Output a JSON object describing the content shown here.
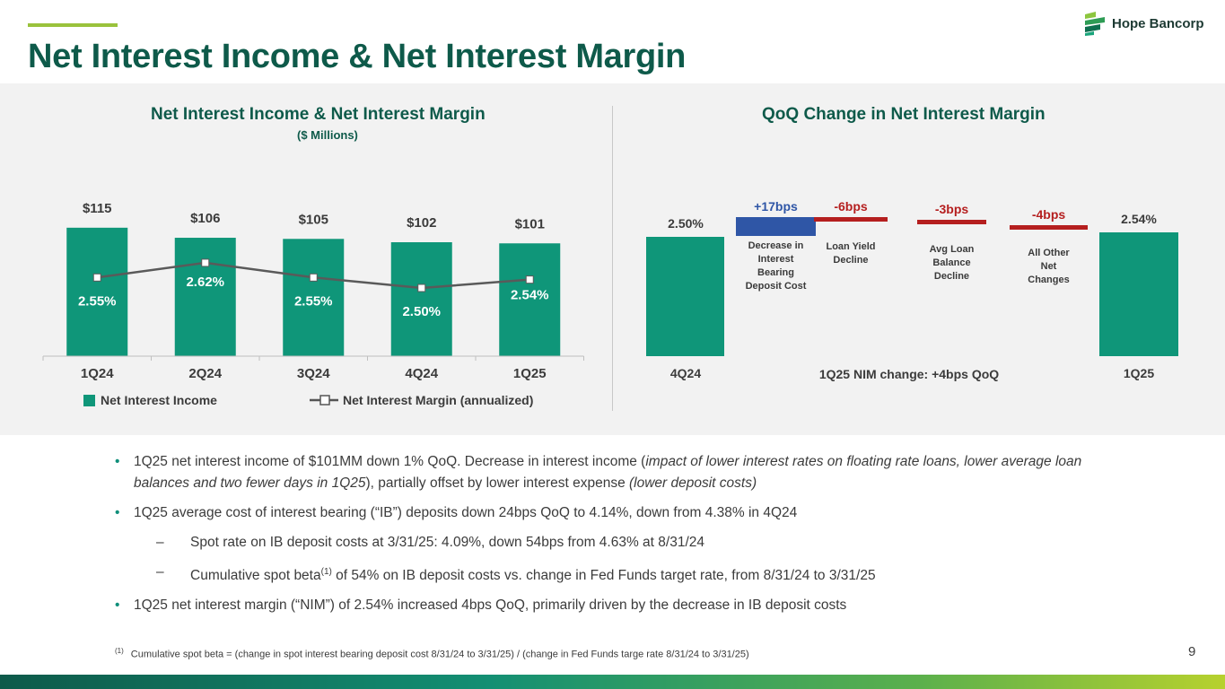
{
  "header": {
    "title": "Net Interest Income & Net Interest Margin",
    "brand": "Hope Bancorp"
  },
  "colors": {
    "dark_green": "#0e5a4a",
    "teal_bar": "#0f9679",
    "blue_bar": "#2f56a6",
    "red_bar": "#b51f1f",
    "accent": "#9ac23c"
  },
  "chart_data": [
    {
      "type": "bar",
      "title": "Net Interest Income & Net Interest Margin",
      "subtitle": "($ Millions)",
      "categories": [
        "1Q24",
        "2Q24",
        "3Q24",
        "4Q24",
        "1Q25"
      ],
      "series": [
        {
          "name": "Net Interest Income",
          "values": [
            115,
            106,
            105,
            102,
            101
          ],
          "labels": [
            "$115",
            "$106",
            "$105",
            "$102",
            "$101"
          ]
        },
        {
          "name": "Net Interest Margin (annualized)",
          "type": "line",
          "values": [
            2.55,
            2.62,
            2.55,
            2.5,
            2.54
          ],
          "labels": [
            "2.55%",
            "2.62%",
            "2.55%",
            "2.50%",
            "2.54%"
          ]
        }
      ],
      "legend": [
        "Net Interest Income",
        "Net Interest Margin (annualized)"
      ]
    },
    {
      "type": "waterfall",
      "title": "QoQ Change in Net Interest Margin",
      "start": {
        "label": "4Q24",
        "value": 2.5,
        "text": "2.50%"
      },
      "end": {
        "label": "1Q25",
        "value": 2.54,
        "text": "2.54%"
      },
      "steps": [
        {
          "change_bps": 17,
          "text": "+17bps",
          "desc": [
            "Decrease in",
            "Interest",
            "Bearing",
            "Deposit Cost"
          ]
        },
        {
          "change_bps": -6,
          "text": "-6bps",
          "desc": [
            "Loan Yield",
            "Decline"
          ]
        },
        {
          "change_bps": -3,
          "text": "-3bps",
          "desc": [
            "Avg Loan",
            "Balance",
            "Decline"
          ]
        },
        {
          "change_bps": -4,
          "text": "-4bps",
          "desc": [
            "All Other",
            "Net",
            "Changes"
          ]
        }
      ],
      "axis_note": "1Q25 NIM change: +4bps QoQ"
    }
  ],
  "bullets": [
    {
      "type": "main",
      "parts": [
        {
          "text": "1Q25 net interest income of $101MM down 1% QoQ. Decrease in interest income (",
          "italic": false
        },
        {
          "text": "impact of lower interest rates on floating rate loans, lower average loan balances and two fewer days in 1Q25",
          "italic": true
        },
        {
          "text": "), partially offset by lower interest expense ",
          "italic": false
        },
        {
          "text": "(lower deposit costs)",
          "italic": true
        }
      ]
    },
    {
      "type": "main",
      "parts": [
        {
          "text": "1Q25 average cost of interest bearing (“IB”) deposits down 24bps QoQ to 4.14%, down from 4.38% in 4Q24",
          "italic": false
        }
      ]
    },
    {
      "type": "sub",
      "parts": [
        {
          "text": "Spot rate on IB deposit costs at 3/31/25: 4.09%, down 54bps from 4.63% at 8/31/24",
          "italic": false
        }
      ]
    },
    {
      "type": "sub",
      "parts": [
        {
          "text": "Cumulative spot beta",
          "italic": false
        },
        {
          "text": "(1)",
          "sup": true
        },
        {
          "text": " of 54% on IB deposit costs vs. change in Fed Funds target rate, from 8/31/24 to 3/31/25",
          "italic": false
        }
      ]
    },
    {
      "type": "main",
      "parts": [
        {
          "text": "1Q25 net interest margin (“NIM”) of 2.54% increased 4bps QoQ, primarily driven by the decrease in IB deposit costs",
          "italic": false
        }
      ]
    }
  ],
  "footnote": {
    "marker": "(1)",
    "text": "Cumulative spot beta = (change in spot interest bearing deposit cost 8/31/24 to 3/31/25) / (change in Fed Funds targe rate 8/31/24 to 3/31/25)"
  },
  "page_number": "9"
}
